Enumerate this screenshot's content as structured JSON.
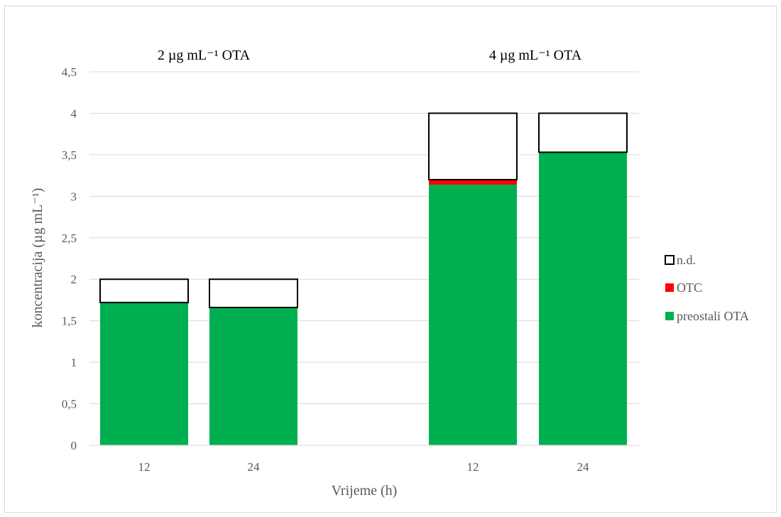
{
  "chart_data": {
    "type": "bar",
    "stacked": true,
    "ylabel": "koncentracija (µg mL⁻¹)",
    "xlabel": "Vrijeme (h)",
    "ylim": [
      0,
      4.5
    ],
    "yticks": [
      "0",
      "0,5",
      "1",
      "1,5",
      "2",
      "2,5",
      "3",
      "3,5",
      "4",
      "4,5"
    ],
    "grid": true,
    "legend_position": "right",
    "groups": [
      {
        "label": "2 µg mL⁻¹ OTA",
        "categories": [
          "12",
          "24"
        ]
      },
      {
        "label": "4 µg mL⁻¹ OTA",
        "categories": [
          "12",
          "24"
        ]
      }
    ],
    "categories": [
      "12",
      "24",
      "12",
      "24"
    ],
    "series": [
      {
        "name": "preostali OTA",
        "color": "#00b050",
        "values": [
          1.72,
          1.66,
          3.14,
          3.53
        ]
      },
      {
        "name": "OTC",
        "color": "#ff0000",
        "values": [
          0,
          0,
          0.06,
          0
        ]
      },
      {
        "name": "n.d.",
        "color": "#ffffff",
        "values": [
          0.28,
          0.34,
          0.8,
          0.47
        ]
      }
    ],
    "legend": [
      "n.d.",
      "OTC",
      "preostali OTA"
    ]
  }
}
